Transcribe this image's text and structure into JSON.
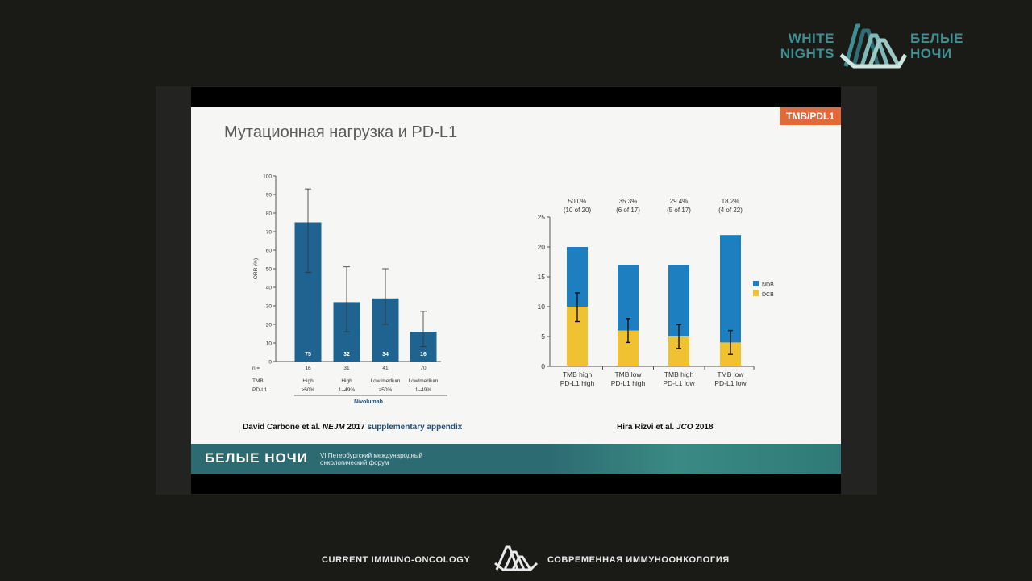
{
  "branding": {
    "top_left_text": "WHITE\nNIGHTS",
    "top_right_text": "БЕЛЫЕ\nНОЧИ",
    "footer_left": "CURRENT IMMUNO-ONCOLOGY",
    "footer_right": "СОВРЕМЕННАЯ ИММУНООНКОЛОГИЯ",
    "brand_color": "#3e8f92"
  },
  "slide": {
    "title": "Мутационная нагрузка и PD-L1",
    "tag": "TMB/PDL1",
    "tag_color": "#e2693a",
    "cite_left_a": "David Carbone et al. ",
    "cite_left_b": "NEJM",
    "cite_left_c": " 2017 ",
    "cite_left_d": "supplementary appendix",
    "cite_right_a": "Hira Rizvi et al. ",
    "cite_right_b": "JCO",
    "cite_right_c": " 2018",
    "footer_brand": "БЕЛЫЕ НОЧИ",
    "footer_sub": "VI Петербургский международный онкологический форум"
  },
  "chart_data": [
    {
      "type": "bar",
      "ylabel": "ORR (%)",
      "ylim": [
        0,
        100
      ],
      "yticks": [
        0,
        10,
        20,
        30,
        40,
        50,
        60,
        70,
        80,
        90,
        100
      ],
      "categories_tmb": [
        "High",
        "High",
        "Low/medium",
        "Low/medium"
      ],
      "categories_pdl1": [
        "≥50%",
        "1–49%",
        "≥50%",
        "1–49%"
      ],
      "row_label_n": "n =",
      "row_label_tmb": "TMB",
      "row_label_pdl1": "PD-L1",
      "n": [
        "16",
        "31",
        "41",
        "70"
      ],
      "values": [
        75,
        32,
        34,
        16
      ],
      "value_labels": [
        "75",
        "32",
        "34",
        "16"
      ],
      "err_low": [
        48,
        16,
        20,
        8
      ],
      "err_high": [
        93,
        51,
        50,
        27
      ],
      "group_label": "Nivolumab",
      "bar_color": "#1f6491"
    },
    {
      "type": "bar",
      "stacked": true,
      "ylim": [
        0,
        25
      ],
      "yticks": [
        0,
        5,
        10,
        15,
        20,
        25
      ],
      "categories_line1": [
        "TMB high",
        "TMB low",
        "TMB high",
        "TMB low"
      ],
      "categories_line2": [
        "PD-L1 high",
        "PD-L1 high",
        "PD-L1 low",
        "PD-L1 low"
      ],
      "top_pct": [
        "50.0%",
        "35.3%",
        "29.4%",
        "18.2%"
      ],
      "top_frac": [
        "(10 of 20)",
        "(6 of 17)",
        "(5 of 17)",
        "(4 of 22)"
      ],
      "series": [
        {
          "name": "DCB",
          "values": [
            10,
            6,
            5,
            4
          ],
          "color": "#f0c232"
        },
        {
          "name": "NDB",
          "values": [
            10,
            11,
            12,
            18
          ],
          "color": "#1d7fc0"
        }
      ],
      "err_low": [
        7.5,
        4,
        3,
        2
      ],
      "err_high": [
        12.3,
        8,
        7,
        6
      ],
      "legend": [
        "NDB",
        "DCB"
      ],
      "legend_position": "right"
    }
  ]
}
